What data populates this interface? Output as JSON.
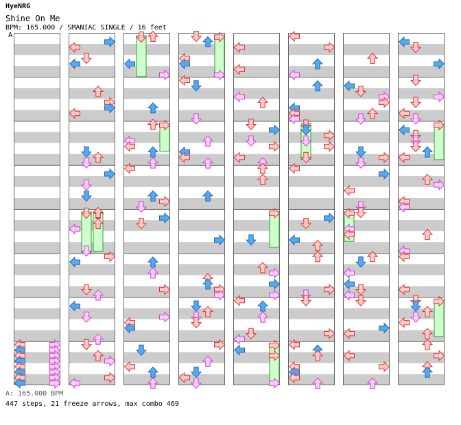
{
  "song": {
    "artist": "HyeNRG",
    "title": "Shine On Me",
    "info_line": "BPM: 165.000 / SMANIAC SINGLE / 16 feet",
    "segment_label": "A",
    "bpm_footer": "A: 165.000 BPM",
    "stats_line": "447 steps, 21 freeze arrows, max combo 469"
  },
  "colors": {
    "stripe": "#cccccc",
    "panel_border": "#666666",
    "red_arrow_fill": "#ffcccc",
    "red_arrow_stroke": "#dd3333",
    "blue_arrow_fill": "#55aaee",
    "blue_arrow_stroke": "#2266bb",
    "pink_arrow_fill": "#ffccff",
    "pink_arrow_stroke": "#cc44cc",
    "freeze_fill": "#ccffcc",
    "freeze_stroke": "#339933"
  },
  "chart_data": {
    "type": "step-chart",
    "lanes": [
      "left",
      "down",
      "up",
      "right"
    ],
    "columns": 8,
    "measures_per_column": 8,
    "step_count": 447,
    "freeze_count": 21,
    "max_combo": 469
  }
}
